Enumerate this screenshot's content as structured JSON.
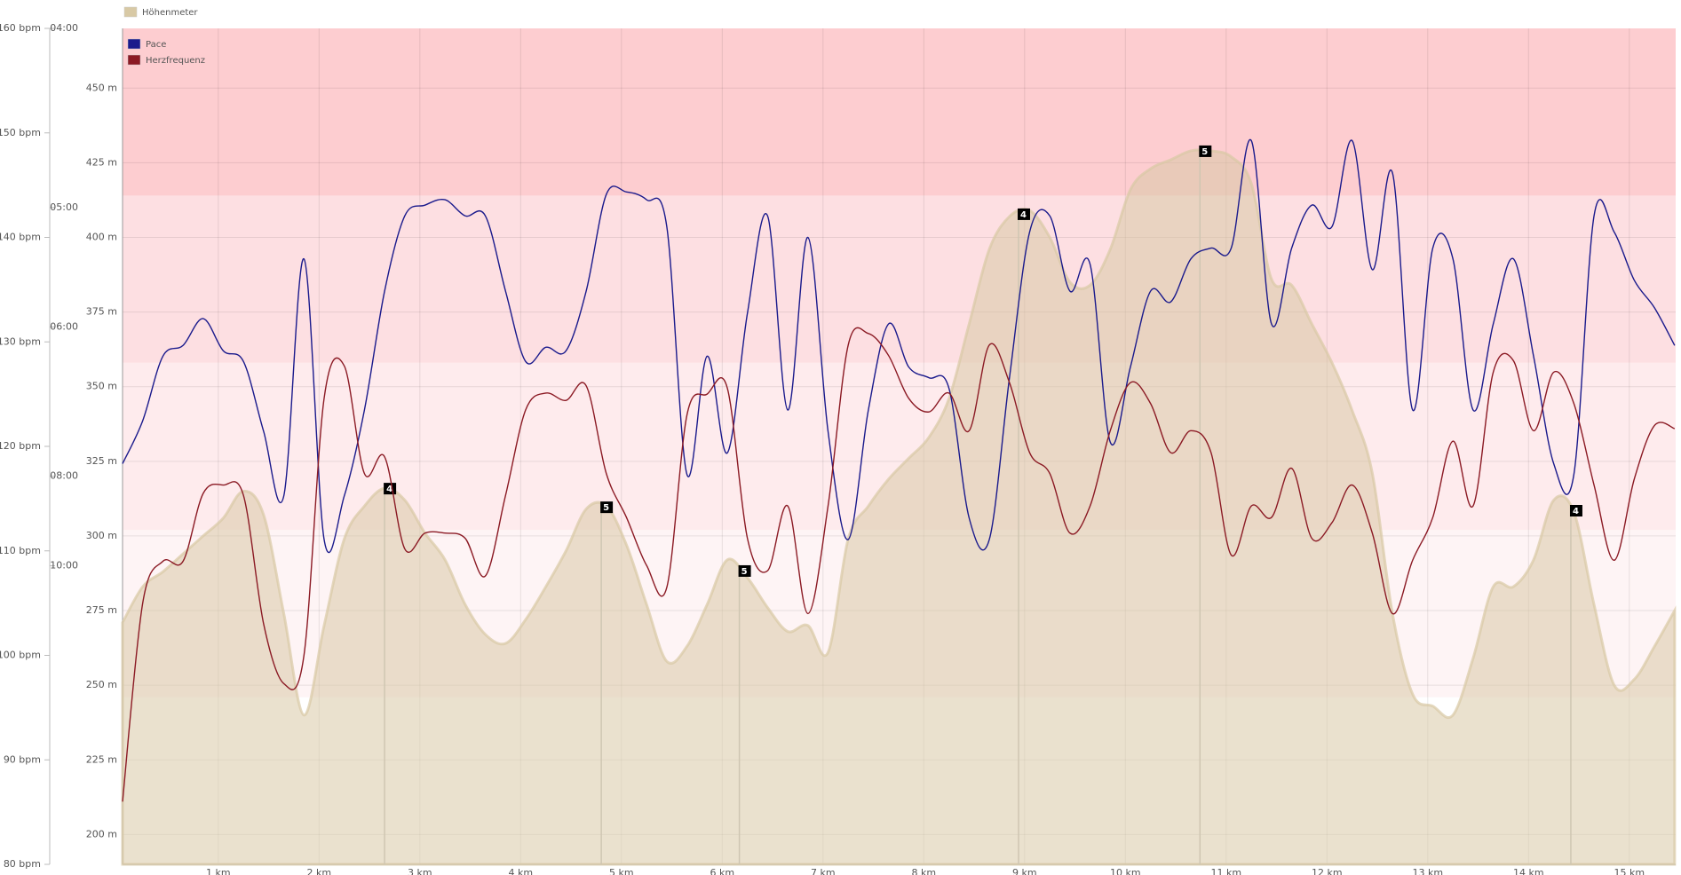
{
  "chart_data": {
    "type": "line",
    "x": [
      0.05,
      0.25,
      0.45,
      0.65,
      0.85,
      1.05,
      1.25,
      1.45,
      1.65,
      1.85,
      2.05,
      2.25,
      2.45,
      2.65,
      2.85,
      3.05,
      3.25,
      3.45,
      3.65,
      3.85,
      4.05,
      4.25,
      4.45,
      4.65,
      4.85,
      5.05,
      5.25,
      5.45,
      5.65,
      5.85,
      6.05,
      6.25,
      6.45,
      6.65,
      6.85,
      7.05,
      7.25,
      7.45,
      7.65,
      7.85,
      8.05,
      8.25,
      8.45,
      8.65,
      8.85,
      9.05,
      9.25,
      9.45,
      9.65,
      9.85,
      10.05,
      10.25,
      10.45,
      10.65,
      10.85,
      11.05,
      11.25,
      11.45,
      11.65,
      11.85,
      12.05,
      12.25,
      12.45,
      12.65,
      12.85,
      13.05,
      13.25,
      13.45,
      13.65,
      13.85,
      14.05,
      14.25,
      14.45,
      14.65,
      14.85,
      15.05,
      15.25,
      15.45
    ],
    "xlim": [
      0.05,
      15.46
    ],
    "xticks": [
      {
        "value": 1,
        "label": "1 km"
      },
      {
        "value": 2,
        "label": "2 km"
      },
      {
        "value": 3,
        "label": "3 km"
      },
      {
        "value": 4,
        "label": "4 km"
      },
      {
        "value": 5,
        "label": "5 km"
      },
      {
        "value": 6,
        "label": "6 km"
      },
      {
        "value": 7,
        "label": "7 km"
      },
      {
        "value": 8,
        "label": "8 km"
      },
      {
        "value": 9,
        "label": "9 km"
      },
      {
        "value": 10,
        "label": "10 km"
      },
      {
        "value": 11,
        "label": "11 km"
      },
      {
        "value": 12,
        "label": "12 km"
      },
      {
        "value": 13,
        "label": "13 km"
      },
      {
        "value": 14,
        "label": "14 km"
      },
      {
        "value": 15,
        "label": "15 km"
      }
    ],
    "ylim": [
      190,
      470
    ],
    "yticks": [
      {
        "value": 200,
        "label": "200 m"
      },
      {
        "value": 225,
        "label": "225 m"
      },
      {
        "value": 250,
        "label": "250 m"
      },
      {
        "value": 275,
        "label": "275 m"
      },
      {
        "value": 300,
        "label": "300 m"
      },
      {
        "value": 325,
        "label": "325 m"
      },
      {
        "value": 350,
        "label": "350 m"
      },
      {
        "value": 375,
        "label": "375 m"
      },
      {
        "value": 400,
        "label": "400 m"
      },
      {
        "value": 425,
        "label": "425 m"
      },
      {
        "value": 450,
        "label": "450 m"
      }
    ],
    "y2lim": [
      80,
      160
    ],
    "y2ticks": [
      {
        "value": 80,
        "label": "80 bpm"
      },
      {
        "value": 90,
        "label": "90 bpm"
      },
      {
        "value": 100,
        "label": "100 bpm"
      },
      {
        "value": 110,
        "label": "110 bpm"
      },
      {
        "value": 120,
        "label": "120 bpm"
      },
      {
        "value": 130,
        "label": "130 bpm"
      },
      {
        "value": 140,
        "label": "140 bpm"
      },
      {
        "value": 150,
        "label": "150 bpm"
      },
      {
        "value": 160,
        "label": "160 bpm"
      }
    ],
    "y3lim": [
      1,
      15
    ],
    "y3ticks": [
      {
        "value": 15,
        "label": "04:00"
      },
      {
        "value": 12,
        "label": "05:00"
      },
      {
        "value": 10,
        "label": "06:00"
      },
      {
        "value": 7.5,
        "label": "08:00"
      },
      {
        "value": 6,
        "label": "10:00"
      }
    ],
    "grid": true,
    "legend": "top-left",
    "zones": [
      {
        "from": 96,
        "to": 112,
        "color": "#fef4f5"
      },
      {
        "from": 112,
        "to": 128,
        "color": "#feebed"
      },
      {
        "from": 128,
        "to": 144,
        "color": "#fddfe2"
      },
      {
        "from": 144,
        "to": 160,
        "color": "#fdcdd0"
      }
    ],
    "markers": [
      {
        "x": 2.65,
        "label": "4"
      },
      {
        "x": 4.8,
        "label": "5"
      },
      {
        "x": 6.17,
        "label": "5"
      },
      {
        "x": 8.94,
        "label": "4"
      },
      {
        "x": 10.74,
        "label": "5"
      },
      {
        "x": 14.42,
        "label": "4"
      }
    ],
    "series": [
      {
        "name": "Höhenmeter",
        "color": "#d8c9a5",
        "axis": "y",
        "area": true,
        "values": [
          271,
          283,
          288,
          294,
          300,
          306,
          315,
          307,
          274,
          240,
          270,
          299,
          310,
          316,
          312,
          301,
          292,
          277,
          267,
          264,
          272,
          283,
          295,
          309,
          310,
          297,
          277,
          258,
          263,
          277,
          292,
          286,
          276,
          268,
          270,
          261,
          299,
          310,
          319,
          326,
          333,
          346,
          371,
          396,
          407,
          409,
          400,
          385,
          384,
          396,
          416,
          423,
          426,
          429,
          429,
          427,
          418,
          386,
          384,
          371,
          358,
          342,
          321,
          274,
          247,
          243,
          240,
          259,
          283,
          283,
          292,
          312,
          308,
          277,
          250,
          252,
          263,
          275
        ]
      },
      {
        "name": "Pace",
        "color": "#1a1a8c",
        "axis": "y3",
        "values": [
          7.71,
          8.43,
          9.51,
          9.69,
          10.14,
          9.6,
          9.42,
          8.25,
          7.17,
          11.14,
          6.44,
          7.17,
          8.61,
          10.6,
          11.86,
          12.04,
          12.13,
          11.86,
          11.86,
          10.6,
          9.42,
          9.66,
          9.6,
          10.6,
          12.22,
          12.26,
          12.13,
          11.68,
          7.53,
          9.51,
          7.89,
          10.23,
          11.86,
          8.61,
          11.5,
          8.25,
          6.44,
          8.61,
          10.05,
          9.33,
          9.15,
          8.97,
          6.8,
          6.44,
          9.15,
          11.59,
          11.86,
          10.6,
          11.05,
          8.07,
          9.33,
          10.6,
          10.42,
          11.14,
          11.32,
          11.32,
          13.12,
          10.05,
          11.32,
          12.04,
          11.68,
          13.12,
          10.96,
          12.58,
          8.61,
          11.32,
          11.14,
          8.61,
          10.05,
          11.14,
          9.51,
          7.71,
          7.53,
          11.86,
          11.59,
          10.78,
          10.32,
          9.69
        ]
      },
      {
        "name": "Herzfrequenz",
        "color": "#8b1a24",
        "axis": "y2",
        "values": [
          86,
          105,
          109,
          109,
          115.5,
          116.3,
          115.3,
          103,
          97.3,
          100,
          124.6,
          127.7,
          117.4,
          119,
          110.2,
          111.7,
          111.7,
          111.2,
          107.6,
          115.3,
          123.5,
          125.1,
          124.4,
          125.8,
          117.4,
          113.2,
          108.6,
          106.5,
          123,
          125,
          125.6,
          111.2,
          108.1,
          114.3,
          104,
          114.3,
          129.7,
          130.8,
          128.7,
          124.6,
          123.3,
          125.1,
          121.5,
          129.7,
          126.1,
          119.4,
          117.4,
          111.7,
          114.3,
          121.5,
          126.1,
          124.1,
          119.4,
          121.5,
          119.4,
          109.6,
          114.3,
          113.2,
          117.9,
          111.2,
          112.7,
          116.3,
          111.7,
          104,
          109.1,
          113.2,
          120.5,
          114.3,
          127.1,
          128.2,
          121.5,
          127.1,
          124.1,
          116.3,
          109.1,
          116.9,
          122,
          121.7
        ]
      }
    ]
  }
}
